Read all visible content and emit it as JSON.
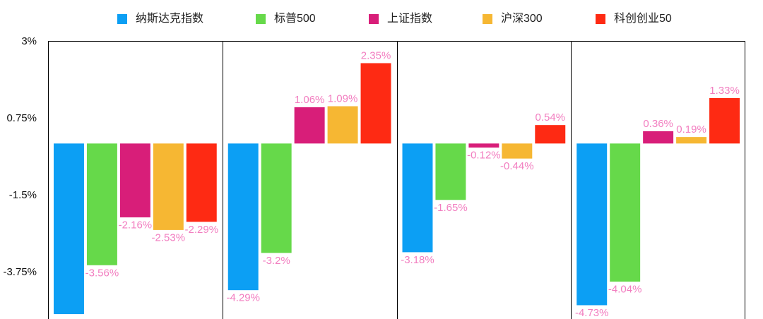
{
  "chart_data": {
    "type": "bar",
    "legend": "top",
    "grid": false,
    "unit": "%",
    "label_color": "#f27ec0",
    "frame_color": "#000000",
    "yticks": [
      3,
      0.75,
      -1.5,
      -3.75
    ],
    "series": [
      {
        "name": "纳斯达克指数",
        "color": "#0c9ff4",
        "values": [
          -4.99,
          -4.29,
          -3.18,
          -4.73
        ]
      },
      {
        "name": "标普500",
        "color": "#66d94a",
        "values": [
          -3.56,
          -3.2,
          -1.65,
          -4.04
        ]
      },
      {
        "name": "上证指数",
        "color": "#d81e79",
        "values": [
          -2.16,
          1.06,
          -0.12,
          0.36
        ]
      },
      {
        "name": "沪深300",
        "color": "#f6b733",
        "values": [
          -2.53,
          1.09,
          -0.44,
          0.19
        ]
      },
      {
        "name": "科创创业50",
        "color": "#fe2a13",
        "values": [
          -2.29,
          2.35,
          0.54,
          1.33
        ]
      }
    ]
  }
}
